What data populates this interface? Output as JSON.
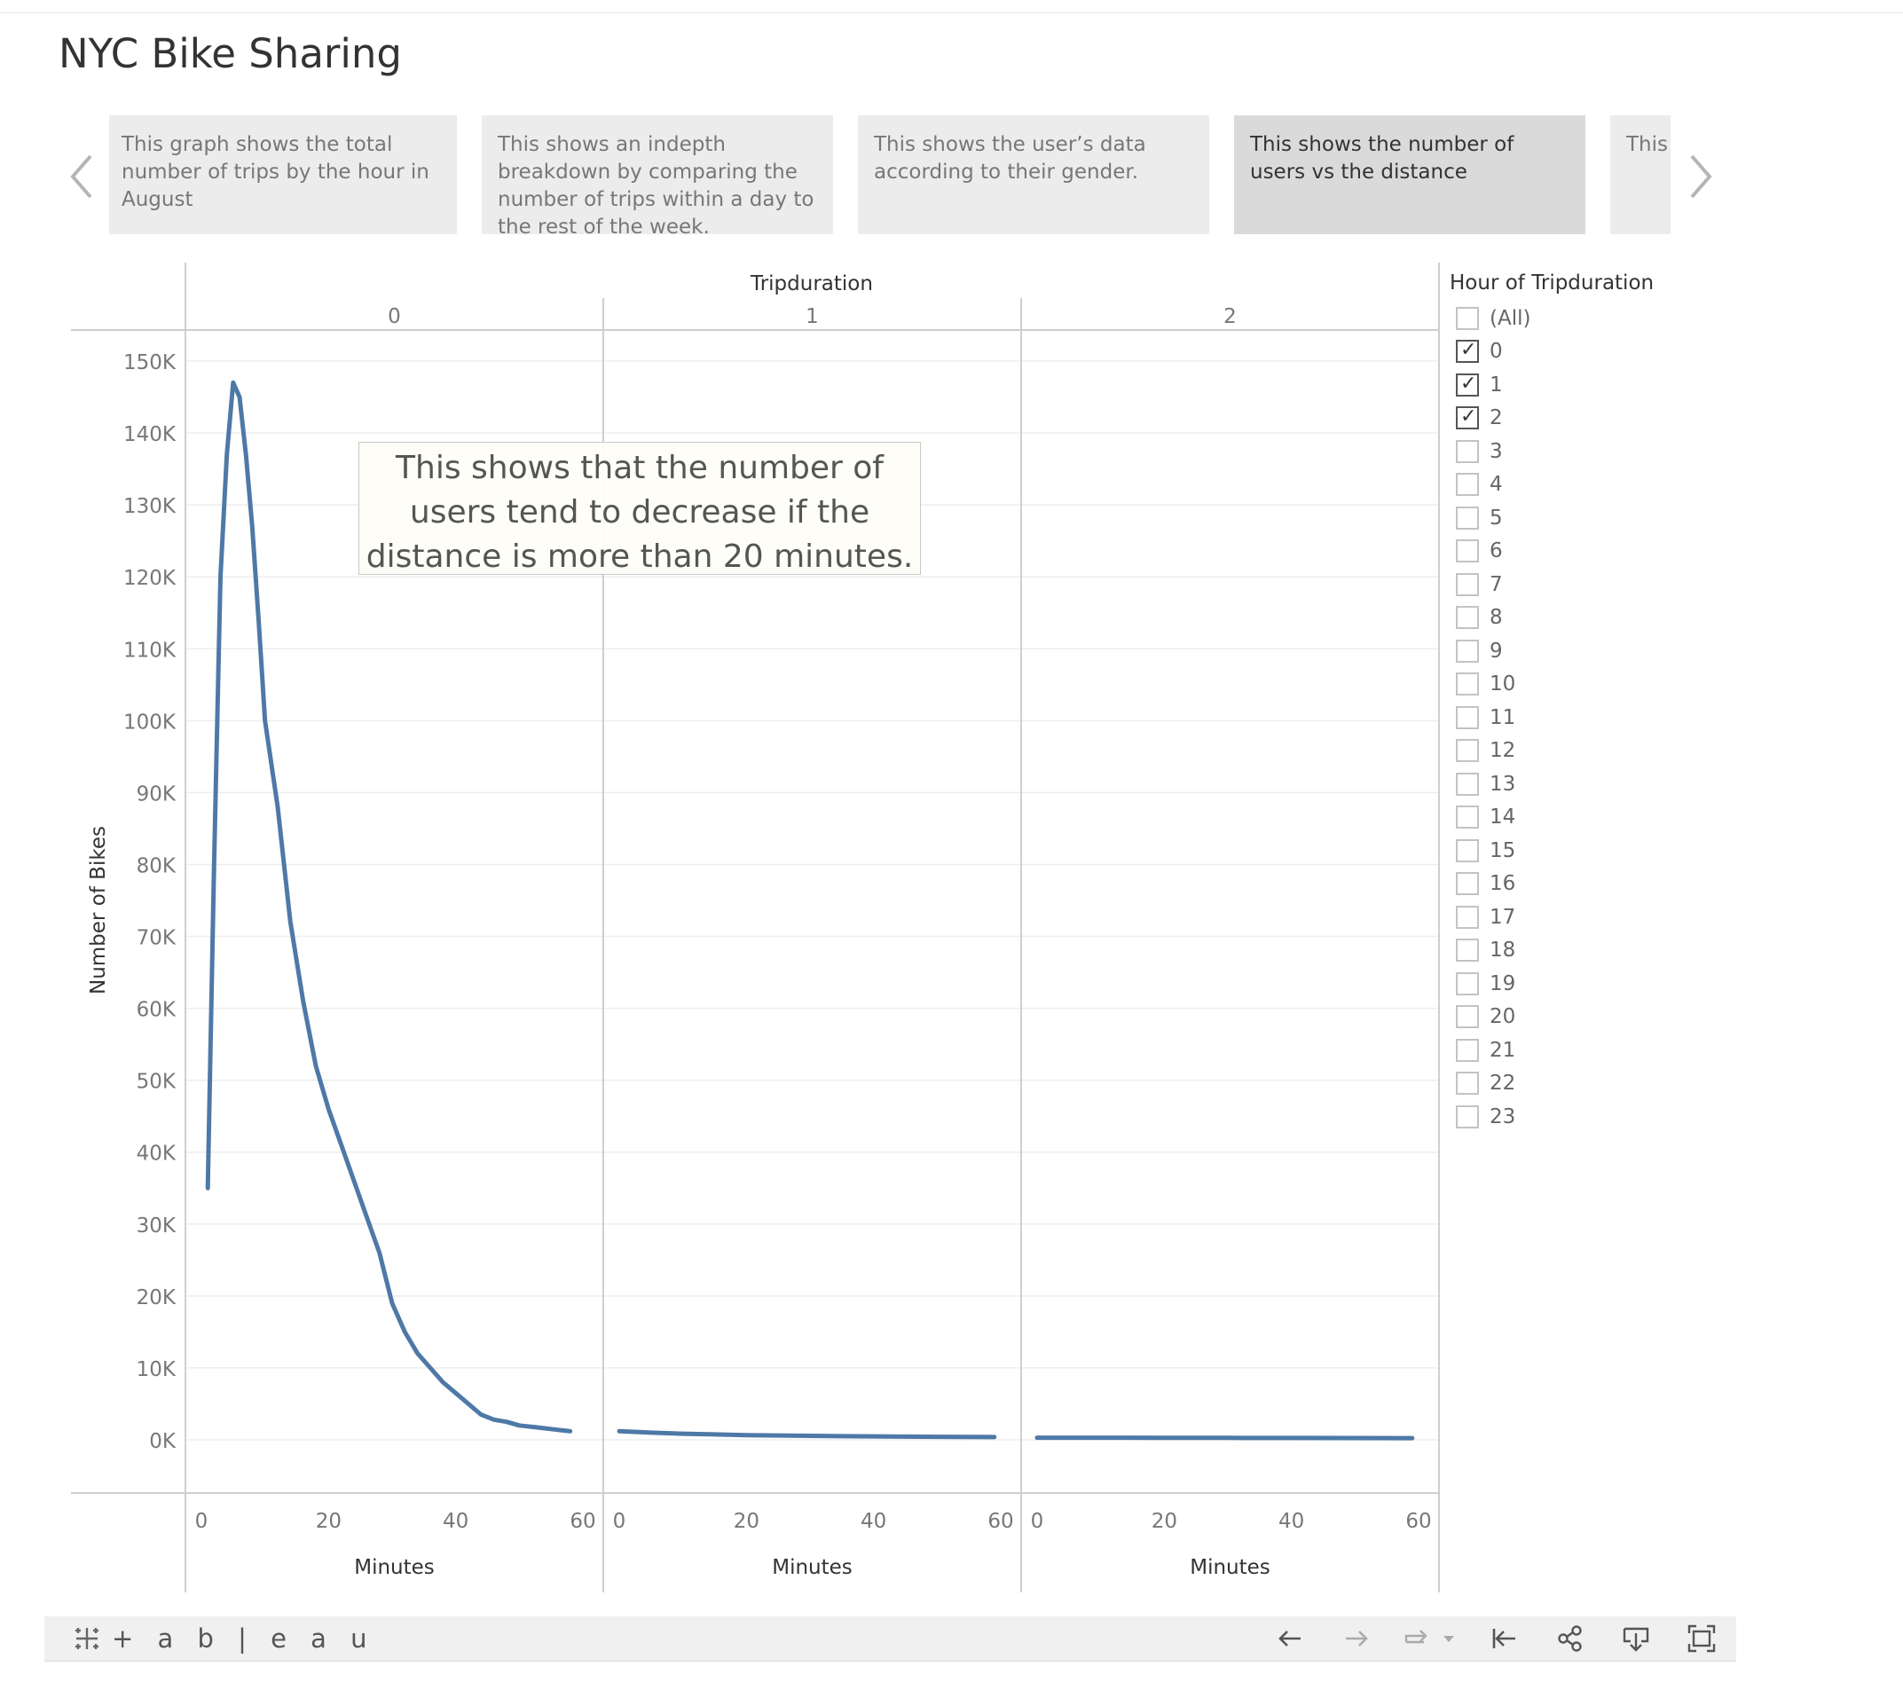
{
  "page": {
    "title": "NYC Bike Sharing"
  },
  "story": {
    "points": [
      {
        "label": "This graph shows the total number of trips by the hour in August",
        "active": false
      },
      {
        "label": "This shows an indepth breakdown by comparing the number of trips within a day to the rest of the week.",
        "active": false
      },
      {
        "label": "This shows the user’s data according to their gender.",
        "active": false
      },
      {
        "label": "This shows the number of users vs the distance",
        "active": true
      },
      {
        "label": "This shows the sub users c",
        "active": false
      }
    ],
    "prev_icon": "chevron-left-icon",
    "next_icon": "chevron-right-icon"
  },
  "chart_data": {
    "type": "line",
    "column_header": "Tripduration",
    "panels": [
      "0",
      "1",
      "2"
    ],
    "ylabel": "Number of Bikes",
    "xlabel": "Minutes",
    "ylim": [
      0,
      150000
    ],
    "y_ticks": [
      "0K",
      "10K",
      "20K",
      "30K",
      "40K",
      "50K",
      "60K",
      "70K",
      "80K",
      "90K",
      "100K",
      "110K",
      "120K",
      "130K",
      "140K",
      "150K"
    ],
    "xlim": [
      0,
      60
    ],
    "x_ticks": [
      "0",
      "20",
      "40",
      "60"
    ],
    "color": "#4e79a7",
    "grid": true,
    "series": [
      {
        "panel": "0",
        "x": [
          1,
          2,
          3,
          4,
          5,
          6,
          7,
          8,
          9,
          10,
          12,
          14,
          16,
          18,
          20,
          22,
          24,
          26,
          28,
          30,
          32,
          34,
          36,
          38,
          40,
          42,
          44,
          46,
          48,
          50,
          52,
          54,
          56,
          58
        ],
        "values": [
          35000,
          80000,
          120000,
          137000,
          147000,
          145000,
          137000,
          127000,
          114000,
          100000,
          88000,
          72000,
          61000,
          52000,
          46000,
          41000,
          36000,
          31000,
          26000,
          19000,
          15000,
          12000,
          10000,
          8000,
          6500,
          5000,
          3500,
          2800,
          2500,
          2000,
          1800,
          1600,
          1400,
          1200
        ]
      },
      {
        "panel": "1",
        "x": [
          0,
          5,
          10,
          15,
          20,
          25,
          30,
          35,
          40,
          45,
          50,
          55,
          59
        ],
        "values": [
          1200,
          1000,
          850,
          750,
          650,
          600,
          550,
          500,
          480,
          450,
          420,
          400,
          380
        ]
      },
      {
        "panel": "2",
        "x": [
          0,
          10,
          20,
          30,
          40,
          50,
          59
        ],
        "values": [
          300,
          290,
          280,
          270,
          260,
          250,
          240
        ]
      }
    ],
    "annotation": "This shows that the number of users tend to decrease if the distance is more than 20 minutes."
  },
  "filter": {
    "title": "Hour of Tripduration",
    "items": [
      {
        "label": "(All)",
        "checked": false
      },
      {
        "label": "0",
        "checked": true
      },
      {
        "label": "1",
        "checked": true
      },
      {
        "label": "2",
        "checked": true
      },
      {
        "label": "3",
        "checked": false
      },
      {
        "label": "4",
        "checked": false
      },
      {
        "label": "5",
        "checked": false
      },
      {
        "label": "6",
        "checked": false
      },
      {
        "label": "7",
        "checked": false
      },
      {
        "label": "8",
        "checked": false
      },
      {
        "label": "9",
        "checked": false
      },
      {
        "label": "10",
        "checked": false
      },
      {
        "label": "11",
        "checked": false
      },
      {
        "label": "12",
        "checked": false
      },
      {
        "label": "13",
        "checked": false
      },
      {
        "label": "14",
        "checked": false
      },
      {
        "label": "15",
        "checked": false
      },
      {
        "label": "16",
        "checked": false
      },
      {
        "label": "17",
        "checked": false
      },
      {
        "label": "18",
        "checked": false
      },
      {
        "label": "19",
        "checked": false
      },
      {
        "label": "20",
        "checked": false
      },
      {
        "label": "21",
        "checked": false
      },
      {
        "label": "22",
        "checked": false
      },
      {
        "label": "23",
        "checked": false
      }
    ]
  },
  "toolbar": {
    "logo_text": "+ a b | e a u",
    "icons": [
      "undo-icon",
      "redo-icon",
      "revert-icon",
      "dropdown-icon",
      "reset-to-start-icon",
      "share-icon",
      "download-icon",
      "fullscreen-icon"
    ]
  }
}
